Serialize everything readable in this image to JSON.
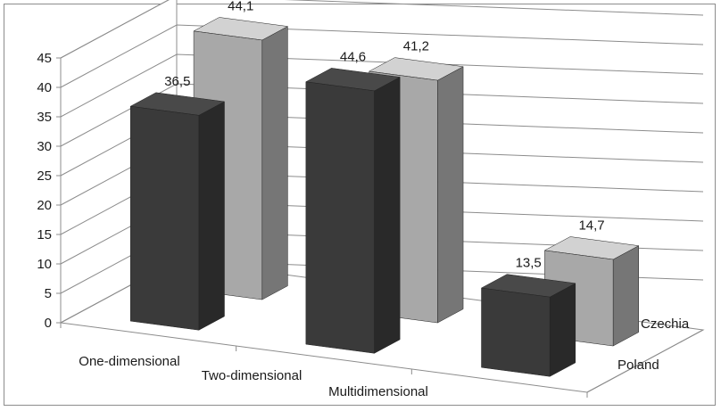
{
  "chart_data": {
    "type": "bar",
    "subtype": "3d-clustered-column",
    "title": "",
    "xlabel": "",
    "ylabel": "",
    "ylim": [
      0,
      45
    ],
    "yticks": [
      "0",
      "5",
      "10",
      "15",
      "20",
      "25",
      "30",
      "35",
      "40",
      "45"
    ],
    "grid": true,
    "categories": [
      "One-dimensional",
      "Two-dimensional",
      "Multidimensional"
    ],
    "depth_labels": [
      "Poland",
      "Czechia"
    ],
    "series": [
      {
        "name": "Poland",
        "color": "#3a3a3a",
        "values": [
          36.5,
          44.6,
          13.5
        ],
        "labels": [
          "36,5",
          "44,6",
          "13,5"
        ]
      },
      {
        "name": "Czechia",
        "color": "#a8a8a8",
        "values": [
          44.1,
          41.2,
          14.7
        ],
        "labels": [
          "44,1",
          "41,2",
          "14,7"
        ]
      }
    ]
  }
}
